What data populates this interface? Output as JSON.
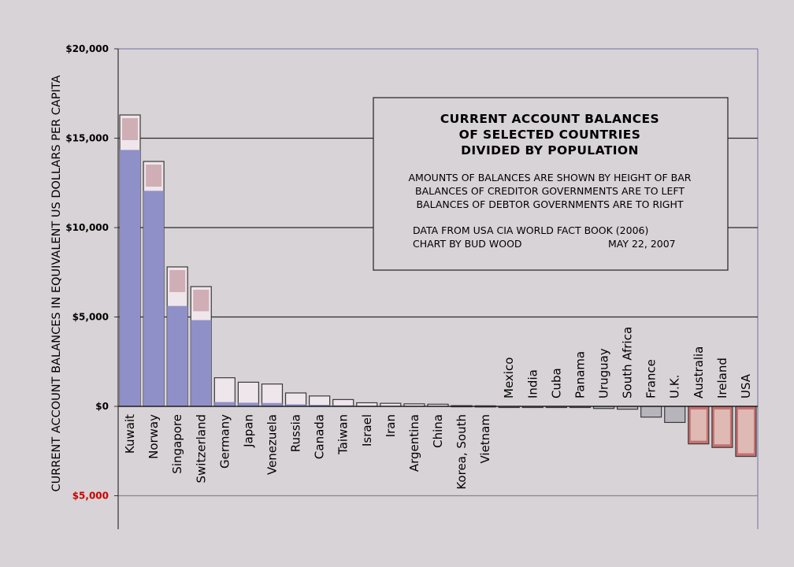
{
  "chart_data": {
    "type": "bar",
    "ylabel": "CURRENT ACCOUNT BALANCES IN EQUIVALENT US DOLLARS PER CAPITA",
    "ylim": [
      -6800,
      20000
    ],
    "yticks": [
      {
        "value": 20000,
        "label": "$20,000",
        "color": "#000000"
      },
      {
        "value": 15000,
        "label": "$15,000",
        "color": "#000000"
      },
      {
        "value": 10000,
        "label": "$10,000",
        "color": "#000000"
      },
      {
        "value": 5000,
        "label": "$5,000",
        "color": "#000000"
      },
      {
        "value": 0,
        "label": "$0",
        "color": "#000000"
      },
      {
        "value": -5000,
        "label": "$5,000",
        "color": "#cc0000"
      }
    ],
    "categories": [
      "Kuwait",
      "Norway",
      "Singapore",
      "Switzerland",
      "Germany",
      "Japan",
      "Venezuela",
      "Russia",
      "Canada",
      "Taiwan",
      "Israel",
      "Iran",
      "Argentina",
      "China",
      "Korea, South",
      "Vietnam",
      "Mexico",
      "India",
      "Cuba",
      "Panama",
      "Uruguay",
      "South Africa",
      "France",
      "U.K.",
      "Australia",
      "Ireland",
      "USA"
    ],
    "values": [
      16300,
      13700,
      7800,
      6700,
      1600,
      1350,
      1250,
      750,
      580,
      380,
      200,
      170,
      140,
      120,
      40,
      30,
      -10,
      -10,
      -10,
      -20,
      -120,
      -160,
      -600,
      -900,
      -2100,
      -2300,
      -2800
    ],
    "colors": {
      "bar": "#9090c8",
      "frame": "#3a3a3a",
      "note": "#efe6ec",
      "grid": "#2a2a2a",
      "plot_border": "#7070a8"
    },
    "grid": true
  },
  "infobox": {
    "title_lines": [
      "CURRENT ACCOUNT BALANCES",
      "OF SELECTED COUNTRIES",
      "DIVIDED BY POPULATION"
    ],
    "body_lines": [
      "AMOUNTS OF BALANCES ARE SHOWN BY HEIGHT OF BAR",
      "BALANCES OF CREDITOR GOVERNMENTS ARE TO LEFT",
      "BALANCES OF DEBTOR GOVERNMENTS ARE TO RIGHT"
    ],
    "source": "DATA FROM USA CIA WORLD FACT BOOK (2006)",
    "credit": "CHART BY BUD WOOD",
    "date": "MAY 22, 2007"
  }
}
